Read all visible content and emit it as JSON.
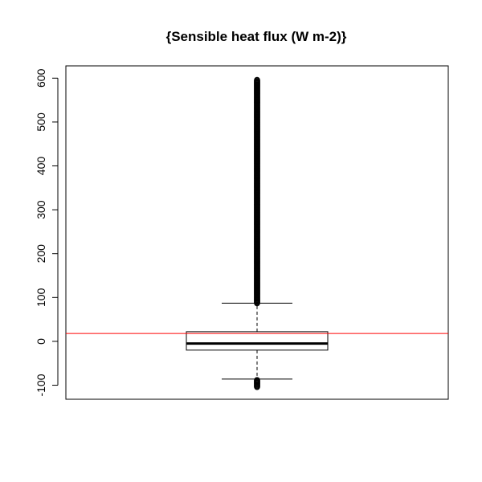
{
  "chart_data": {
    "type": "boxplot",
    "title": "{Sensible heat flux (W m-2)}",
    "xlabel": "",
    "ylabel": "",
    "ylim": [
      -132,
      628
    ],
    "yticks": [
      -100,
      0,
      100,
      200,
      300,
      400,
      500,
      600
    ],
    "ytick_labels": [
      "-100",
      "0",
      "100",
      "200",
      "300",
      "400",
      "500",
      "600"
    ],
    "grid": false,
    "legend": "none",
    "box": {
      "min_whisker": -86,
      "q1": -20,
      "median": -5,
      "q3": 22,
      "max_whisker": 87
    },
    "outliers": {
      "upper_range": [
        87,
        596
      ],
      "lower_range": [
        -104,
        -88
      ]
    },
    "reference_line": {
      "y": 18,
      "color": "#ff0000"
    },
    "colors": {
      "box": "#000000",
      "reference": "#ff0000"
    }
  }
}
